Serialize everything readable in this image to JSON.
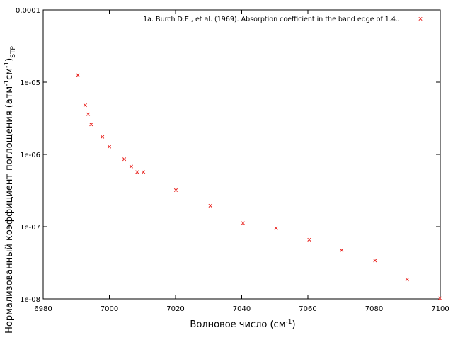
{
  "chart_data": {
    "type": "scatter",
    "xlabel": "Волновое число (см",
    "xlabel_sup": "-1",
    "xlabel_tail": ")",
    "ylabel": "Нормализованный коэффициент поглощения (атм",
    "ylabel_sup1": "-1",
    "ylabel_mid": "см",
    "ylabel_sup2": "-1",
    "ylabel_close": ")",
    "ylabel_sub": "STP",
    "xlim": [
      6980,
      7100
    ],
    "ylim": [
      1e-08,
      0.0001
    ],
    "yscale": "log",
    "grid": false,
    "legend_position": "top-right",
    "x_ticks": [
      6980,
      7000,
      7020,
      7040,
      7060,
      7080,
      7100
    ],
    "x_tick_labels": [
      "6980",
      "7000",
      "7020",
      "7040",
      "7060",
      "7080",
      "7100"
    ],
    "y_ticks": [
      1e-08,
      1e-07,
      1e-06,
      1e-05,
      0.0001
    ],
    "y_tick_labels": [
      "1e-08",
      "1e-07",
      "1e-06",
      "1e-05",
      "0.0001"
    ],
    "series": [
      {
        "name": "1a. Burch D.E., et al. (1969). Absorption coefficient in the band edge of 1.4....",
        "color": "#e8201c",
        "marker": "x",
        "x": [
          6990.5,
          6992.7,
          6993.6,
          6994.5,
          6997.9,
          7000.0,
          7004.5,
          7006.6,
          7008.4,
          7010.3,
          7020.1,
          7030.5,
          7040.4,
          7050.4,
          7060.4,
          7070.2,
          7080.3,
          7090.0,
          7099.9
        ],
        "y": [
          1.25e-05,
          4.8e-06,
          3.6e-06,
          2.6e-06,
          1.75e-06,
          1.28e-06,
          8.6e-07,
          6.8e-07,
          5.7e-07,
          5.7e-07,
          3.2e-07,
          1.95e-07,
          1.12e-07,
          9.5e-08,
          6.6e-08,
          4.7e-08,
          3.4e-08,
          1.85e-08,
          1.02e-08
        ]
      }
    ]
  }
}
